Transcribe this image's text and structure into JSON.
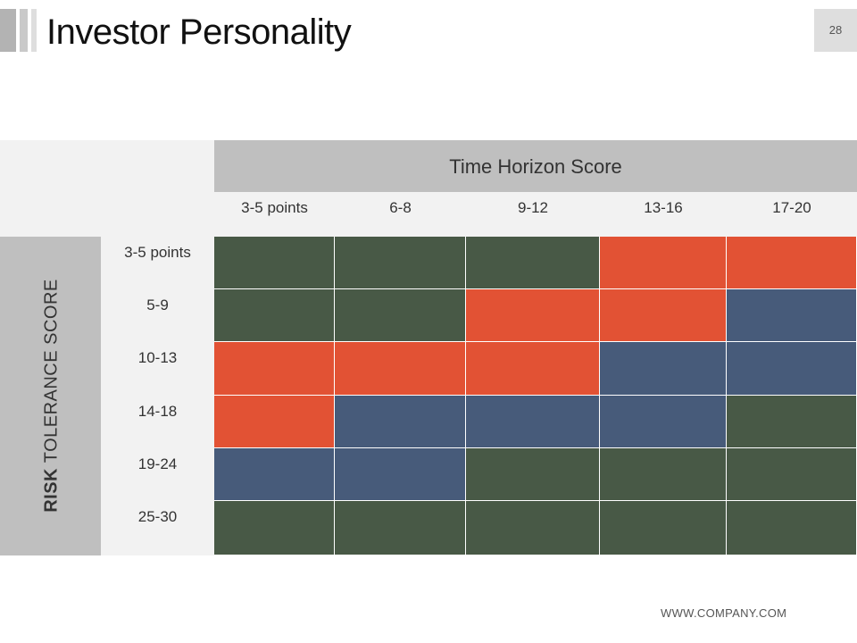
{
  "slide": {
    "title": "Investor Personality",
    "page_number": "28",
    "footer_url": "WWW.COMPANY.COM"
  },
  "matrix": {
    "column_axis_title": "Time Horizon Score",
    "columns": [
      "3-5 points",
      "6-8",
      "9-12",
      "13-16",
      "17-20"
    ],
    "row_axis_title_bold": "RISK",
    "row_axis_title_rest": "TOLERANCE SCORE",
    "rows": [
      {
        "label": "3-5 points",
        "cells": [
          "green",
          "green",
          "green",
          "orange",
          "orange"
        ]
      },
      {
        "label": "5-9",
        "cells": [
          "green",
          "green",
          "orange",
          "orange",
          "blue"
        ]
      },
      {
        "label": "10-13",
        "cells": [
          "orange",
          "orange",
          "orange",
          "blue",
          "blue"
        ]
      },
      {
        "label": "14-18",
        "cells": [
          "orange",
          "blue",
          "blue",
          "blue",
          "green"
        ]
      },
      {
        "label": "19-24",
        "cells": [
          "blue",
          "blue",
          "green",
          "green",
          "green"
        ]
      },
      {
        "label": "25-30",
        "cells": [
          "green",
          "green",
          "green",
          "green",
          "green"
        ]
      }
    ]
  },
  "colors": {
    "green": "#485946",
    "orange": "#e25234",
    "blue": "#475b7a",
    "header_gray": "#bfbfbf",
    "light_gray": "#f2f2f2"
  }
}
